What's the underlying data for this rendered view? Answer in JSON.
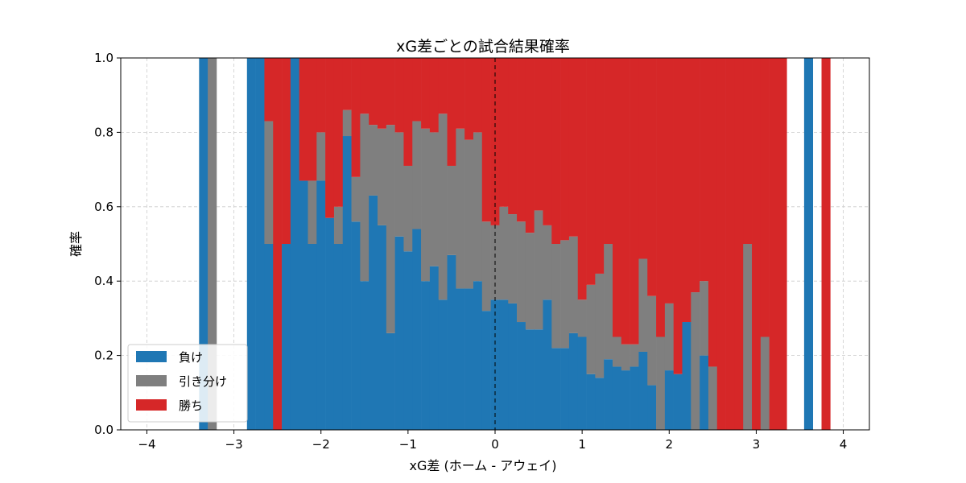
{
  "chart_data": {
    "type": "bar",
    "stacked": true,
    "title": "xG差ごとの試合結果確率",
    "xlabel": "xG差 (ホーム - アウェイ)",
    "ylabel": "確率",
    "xlim": [
      -4.3,
      4.3
    ],
    "ylim": [
      0,
      1
    ],
    "xticks": [
      "−4",
      "−3",
      "−2",
      "−1",
      "0",
      "1",
      "2",
      "3",
      "4"
    ],
    "yticks": [
      "0.0",
      "0.2",
      "0.4",
      "0.6",
      "0.8",
      "1.0"
    ],
    "grid": true,
    "vline_x": 0,
    "legend_position": "lower-left",
    "colors": {
      "loss": "#1f77b4",
      "draw": "#7f7f7f",
      "win": "#d62728"
    },
    "series": [
      {
        "name": "負け",
        "key": "loss"
      },
      {
        "name": "引き分け",
        "key": "draw"
      },
      {
        "name": "勝ち",
        "key": "win"
      }
    ],
    "bins": [
      {
        "x": -3.35,
        "loss": 1.0,
        "draw": 0.0,
        "win": 0.0
      },
      {
        "x": -3.25,
        "loss": 0.0,
        "draw": 1.0,
        "win": 0.0
      },
      {
        "x": -2.8,
        "loss": 1.0,
        "draw": 0.0,
        "win": 0.0
      },
      {
        "x": -2.7,
        "loss": 1.0,
        "draw": 0.0,
        "win": 0.0
      },
      {
        "x": -2.6,
        "loss": 0.5,
        "draw": 0.33,
        "win": 0.17
      },
      {
        "x": -2.5,
        "loss": 0.0,
        "draw": 0.0,
        "win": 1.0
      },
      {
        "x": -2.4,
        "loss": 0.5,
        "draw": 0.0,
        "win": 0.5
      },
      {
        "x": -2.3,
        "loss": 1.0,
        "draw": 0.0,
        "win": 0.0
      },
      {
        "x": -2.2,
        "loss": 0.67,
        "draw": 0.0,
        "win": 0.33
      },
      {
        "x": -2.1,
        "loss": 0.5,
        "draw": 0.17,
        "win": 0.33
      },
      {
        "x": -2.0,
        "loss": 0.67,
        "draw": 0.13,
        "win": 0.2
      },
      {
        "x": -1.9,
        "loss": 0.57,
        "draw": 0.0,
        "win": 0.43
      },
      {
        "x": -1.8,
        "loss": 0.5,
        "draw": 0.1,
        "win": 0.4
      },
      {
        "x": -1.7,
        "loss": 0.79,
        "draw": 0.07,
        "win": 0.14
      },
      {
        "x": -1.6,
        "loss": 0.56,
        "draw": 0.12,
        "win": 0.32
      },
      {
        "x": -1.5,
        "loss": 0.4,
        "draw": 0.45,
        "win": 0.15
      },
      {
        "x": -1.4,
        "loss": 0.63,
        "draw": 0.19,
        "win": 0.18
      },
      {
        "x": -1.3,
        "loss": 0.55,
        "draw": 0.26,
        "win": 0.19
      },
      {
        "x": -1.2,
        "loss": 0.26,
        "draw": 0.56,
        "win": 0.18
      },
      {
        "x": -1.1,
        "loss": 0.52,
        "draw": 0.28,
        "win": 0.2
      },
      {
        "x": -1.0,
        "loss": 0.48,
        "draw": 0.23,
        "win": 0.29
      },
      {
        "x": -0.9,
        "loss": 0.54,
        "draw": 0.29,
        "win": 0.17
      },
      {
        "x": -0.8,
        "loss": 0.4,
        "draw": 0.41,
        "win": 0.19
      },
      {
        "x": -0.7,
        "loss": 0.44,
        "draw": 0.36,
        "win": 0.2
      },
      {
        "x": -0.6,
        "loss": 0.35,
        "draw": 0.5,
        "win": 0.15
      },
      {
        "x": -0.5,
        "loss": 0.47,
        "draw": 0.24,
        "win": 0.29
      },
      {
        "x": -0.4,
        "loss": 0.38,
        "draw": 0.43,
        "win": 0.19
      },
      {
        "x": -0.3,
        "loss": 0.38,
        "draw": 0.4,
        "win": 0.22
      },
      {
        "x": -0.2,
        "loss": 0.4,
        "draw": 0.4,
        "win": 0.2
      },
      {
        "x": -0.1,
        "loss": 0.32,
        "draw": 0.24,
        "win": 0.44
      },
      {
        "x": 0.0,
        "loss": 0.35,
        "draw": 0.2,
        "win": 0.45
      },
      {
        "x": 0.1,
        "loss": 0.35,
        "draw": 0.25,
        "win": 0.4
      },
      {
        "x": 0.2,
        "loss": 0.34,
        "draw": 0.24,
        "win": 0.42
      },
      {
        "x": 0.3,
        "loss": 0.29,
        "draw": 0.27,
        "win": 0.44
      },
      {
        "x": 0.4,
        "loss": 0.27,
        "draw": 0.26,
        "win": 0.47
      },
      {
        "x": 0.5,
        "loss": 0.27,
        "draw": 0.32,
        "win": 0.41
      },
      {
        "x": 0.6,
        "loss": 0.35,
        "draw": 0.2,
        "win": 0.45
      },
      {
        "x": 0.7,
        "loss": 0.22,
        "draw": 0.28,
        "win": 0.5
      },
      {
        "x": 0.8,
        "loss": 0.22,
        "draw": 0.29,
        "win": 0.49
      },
      {
        "x": 0.9,
        "loss": 0.26,
        "draw": 0.26,
        "win": 0.48
      },
      {
        "x": 1.0,
        "loss": 0.25,
        "draw": 0.1,
        "win": 0.65
      },
      {
        "x": 1.1,
        "loss": 0.15,
        "draw": 0.24,
        "win": 0.61
      },
      {
        "x": 1.2,
        "loss": 0.14,
        "draw": 0.28,
        "win": 0.58
      },
      {
        "x": 1.3,
        "loss": 0.19,
        "draw": 0.31,
        "win": 0.5
      },
      {
        "x": 1.4,
        "loss": 0.17,
        "draw": 0.08,
        "win": 0.75
      },
      {
        "x": 1.5,
        "loss": 0.16,
        "draw": 0.07,
        "win": 0.77
      },
      {
        "x": 1.6,
        "loss": 0.17,
        "draw": 0.06,
        "win": 0.77
      },
      {
        "x": 1.7,
        "loss": 0.21,
        "draw": 0.25,
        "win": 0.54
      },
      {
        "x": 1.8,
        "loss": 0.12,
        "draw": 0.24,
        "win": 0.64
      },
      {
        "x": 1.9,
        "loss": 0.0,
        "draw": 0.25,
        "win": 0.75
      },
      {
        "x": 2.0,
        "loss": 0.16,
        "draw": 0.18,
        "win": 0.66
      },
      {
        "x": 2.1,
        "loss": 0.15,
        "draw": 0.0,
        "win": 0.85
      },
      {
        "x": 2.2,
        "loss": 0.29,
        "draw": 0.0,
        "win": 0.71
      },
      {
        "x": 2.3,
        "loss": 0.0,
        "draw": 0.37,
        "win": 0.63
      },
      {
        "x": 2.4,
        "loss": 0.2,
        "draw": 0.2,
        "win": 0.6
      },
      {
        "x": 2.5,
        "loss": 0.0,
        "draw": 0.17,
        "win": 0.83
      },
      {
        "x": 2.6,
        "loss": 0.0,
        "draw": 0.0,
        "win": 1.0
      },
      {
        "x": 2.7,
        "loss": 0.0,
        "draw": 0.0,
        "win": 1.0
      },
      {
        "x": 2.8,
        "loss": 0.0,
        "draw": 0.0,
        "win": 1.0
      },
      {
        "x": 2.9,
        "loss": 0.0,
        "draw": 0.5,
        "win": 0.5
      },
      {
        "x": 3.0,
        "loss": 0.0,
        "draw": 0.0,
        "win": 1.0
      },
      {
        "x": 3.1,
        "loss": 0.0,
        "draw": 0.25,
        "win": 0.75
      },
      {
        "x": 3.2,
        "loss": 0.0,
        "draw": 0.0,
        "win": 1.0
      },
      {
        "x": 3.3,
        "loss": 0.0,
        "draw": 0.0,
        "win": 1.0
      },
      {
        "x": 3.6,
        "loss": 1.0,
        "draw": 0.0,
        "win": 0.0
      },
      {
        "x": 3.8,
        "loss": 0.0,
        "draw": 0.0,
        "win": 1.0
      }
    ]
  }
}
